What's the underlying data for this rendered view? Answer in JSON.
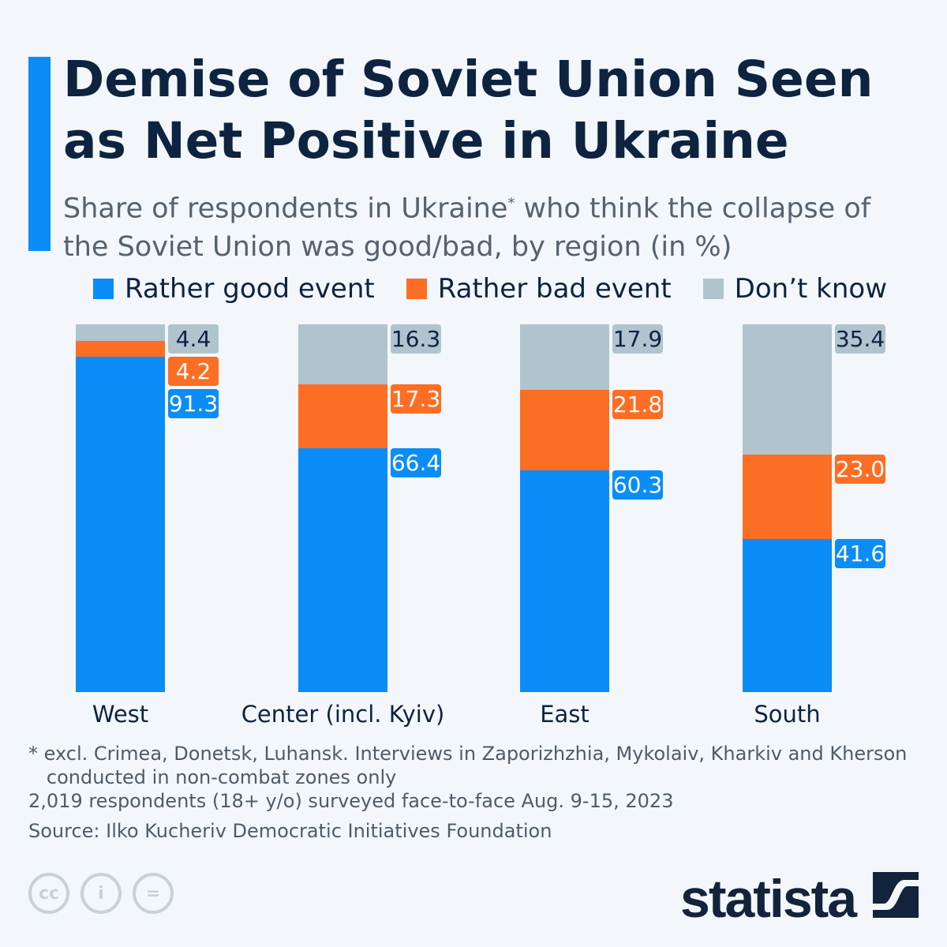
{
  "title": "Demise of Soviet Union Seen as Net Positive in Ukraine",
  "subtitle_pre": "Share of respondents in Ukraine",
  "subtitle_sup": "*",
  "subtitle_post": " who think the collapse of the Soviet Union was good/bad, by region (in %)",
  "chart_data": {
    "type": "bar",
    "stacked": true,
    "categories": [
      "West",
      "Center (incl. Kyiv)",
      "East",
      "South"
    ],
    "series": [
      {
        "name": "Rather good event",
        "color": "#0a8df7",
        "values": [
          91.3,
          66.4,
          60.3,
          41.6
        ]
      },
      {
        "name": "Rather bad event",
        "color": "#fc6e23",
        "values": [
          4.2,
          17.3,
          21.8,
          23.0
        ]
      },
      {
        "name": "Don’t know",
        "color": "#b0c4ce",
        "values": [
          4.4,
          16.3,
          17.9,
          35.4
        ]
      }
    ],
    "ylim": [
      0,
      100
    ],
    "legend": "top",
    "grid": false
  },
  "notes": [
    "* excl. Crimea, Donetsk, Luhansk. Interviews in Zaporizhzhia, Mykolaiv, Kharkiv and Kherson",
    "   conducted in non-combat zones only",
    "2,019 respondents (18+ y/o) surveyed face-to-face Aug. 9-15, 2023"
  ],
  "source": "Source: Ilko Kucheriv Democratic Initiatives Foundation",
  "license_icons": [
    "cc-icon",
    "attribution-icon",
    "no-derivatives-icon"
  ],
  "license_glyphs": [
    "cc",
    "i",
    "="
  ],
  "brand": "statista"
}
